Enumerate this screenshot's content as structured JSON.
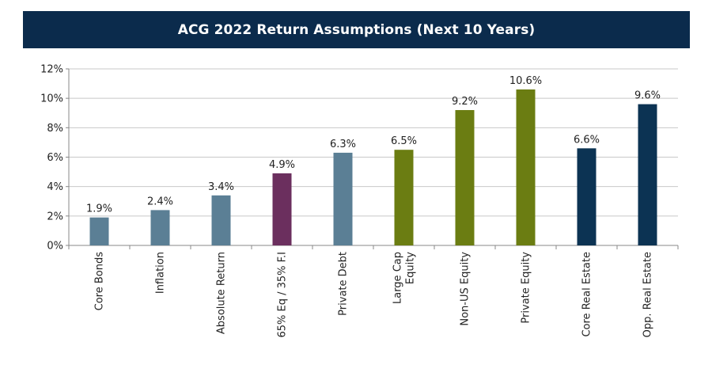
{
  "chart_data": {
    "type": "bar",
    "title": "ACG 2022 Return Assumptions (Next 10 Years)",
    "xlabel": "",
    "ylabel": "",
    "ylim": [
      0,
      12
    ],
    "yticks": [
      "0%",
      "2%",
      "4%",
      "6%",
      "8%",
      "10%",
      "12%"
    ],
    "grid": true,
    "categories": [
      [
        "Core Bonds"
      ],
      [
        "Inflation"
      ],
      [
        "Absolute Return"
      ],
      [
        "65% Eq / 35% F.I"
      ],
      [
        "Private Debt"
      ],
      [
        "Large Cap",
        "Equity"
      ],
      [
        "Non-US Equity"
      ],
      [
        "Private Equity"
      ],
      [
        "Core Real Estate"
      ],
      [
        "Opp. Real Estate"
      ]
    ],
    "values": [
      1.9,
      2.4,
      3.4,
      4.9,
      6.3,
      6.5,
      9.2,
      10.6,
      6.6,
      9.6
    ],
    "value_labels": [
      "1.9%",
      "2.4%",
      "3.4%",
      "4.9%",
      "6.3%",
      "6.5%",
      "9.2%",
      "10.6%",
      "6.6%",
      "9.6%"
    ],
    "bar_colors": [
      "#5b7f95",
      "#5b7f95",
      "#5b7f95",
      "#6b2f5e",
      "#5b7f95",
      "#6b7d12",
      "#6b7d12",
      "#6b7d12",
      "#0c3353",
      "#0c3353"
    ]
  },
  "colors": {
    "banner": "#0b2b4c",
    "gridline": "#c8c8c8",
    "axis": "#888888"
  }
}
